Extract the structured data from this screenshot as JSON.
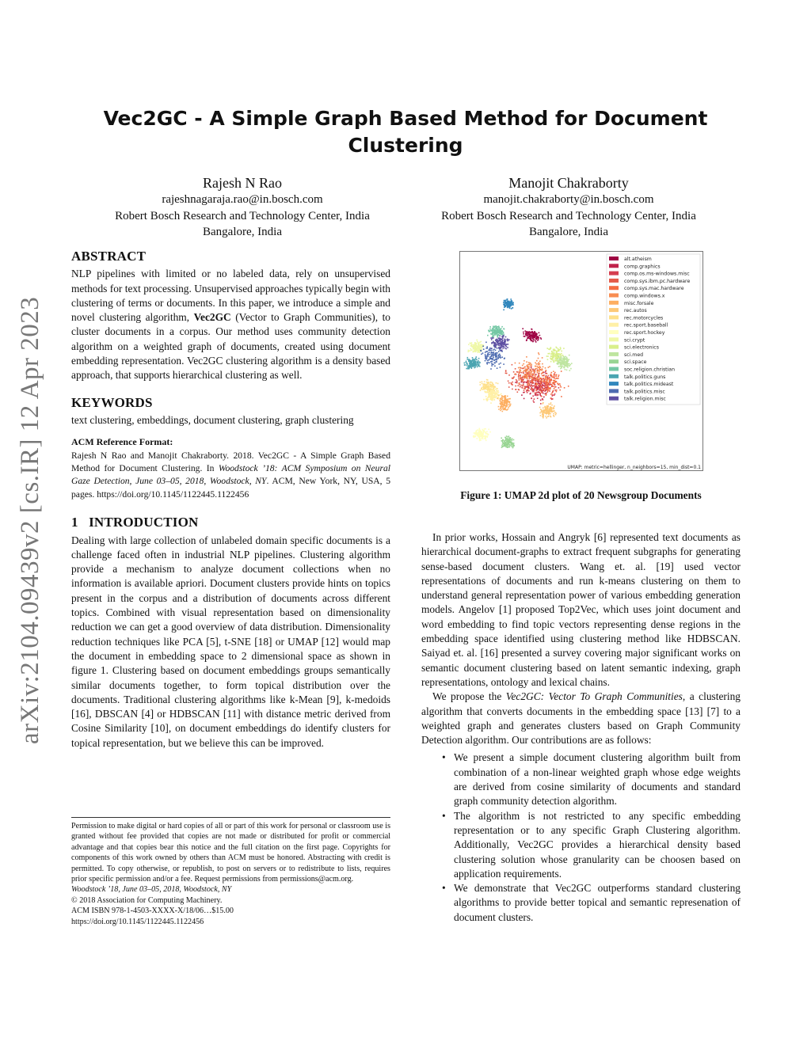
{
  "arxiv_stamp": "arXiv:2104.09439v2  [cs.IR]  12 Apr 2023",
  "title": "Vec2GC - A Simple Graph Based Method for Document Clustering",
  "authors": [
    {
      "name": "Rajesh N Rao",
      "email": "rajeshnagaraja.rao@in.bosch.com",
      "affiliation": "Robert Bosch Research and Technology Center, India",
      "location": "Bangalore, India"
    },
    {
      "name": "Manojit Chakraborty",
      "email": "manojit.chakraborty@in.bosch.com",
      "affiliation": "Robert Bosch Research and Technology Center, India",
      "location": "Bangalore, India"
    }
  ],
  "abstract": {
    "heading": "ABSTRACT",
    "text_before": "NLP pipelines with limited or no labeled data, rely on unsupervised methods for text processing. Unsupervised approaches typically begin with clustering of terms or documents. In this paper, we introduce a simple and novel clustering algorithm, ",
    "bold": "Vec2GC",
    "text_after": " (Vector to Graph Communities), to cluster documents in a corpus. Our method uses community detection algorithm on a weighted graph of documents, created using document embedding representation. Vec2GC clustering algorithm is a density based approach, that supports hierarchical clustering as well."
  },
  "keywords": {
    "heading": "KEYWORDS",
    "text": "text clustering, embeddings, document clustering, graph clustering"
  },
  "acm_ref": {
    "heading": "ACM Reference Format:",
    "text_before": "Rajesh N Rao and Manojit Chakraborty. 2018. Vec2GC - A Simple Graph Based Method for Document Clustering. In ",
    "italic": "Woodstock ’18: ACM Symposium on Neural Gaze Detection, June 03–05, 2018, Woodstock, NY",
    "text_after": ". ACM, New York, NY, USA, 5 pages. https://doi.org/10.1145/1122445.1122456"
  },
  "intro": {
    "heading_num": "1",
    "heading": "INTRODUCTION",
    "text": "Dealing with large collection of unlabeled domain specific documents is a challenge faced often in industrial NLP pipelines. Clustering algorithm provide a mechanism to analyze document collections when no information is available apriori. Document clusters provide hints on topics present in the corpus and a distribution of documents across different topics. Combined with visual representation based on dimensionality reduction we can get a good overview of data distribution. Dimensionality reduction techniques like PCA [5], t-SNE [18] or UMAP [12] would map the document in embedding space to 2 dimensional space as shown in figure 1. Clustering based on document embeddings groups semantically similar documents together, to form topical distribution over the documents. Traditional clustering algorithms like k-Mean [9], k-medoids [16], DBSCAN [4] or HDBSCAN [11] with distance metric derived from Cosine Similarity [10], on document embeddings do identify clusters for topical representation, but we believe this can be improved."
  },
  "footnote": {
    "permission": "Permission to make digital or hard copies of all or part of this work for personal or classroom use is granted without fee provided that copies are not made or distributed for profit or commercial advantage and that copies bear this notice and the full citation on the first page. Copyrights for components of this work owned by others than ACM must be honored. Abstracting with credit is permitted. To copy otherwise, or republish, to post on servers or to redistribute to lists, requires prior specific permission and/or a fee. Request permissions from permissions@acm.org.",
    "venue": "Woodstock ’18, June 03–05, 2018, Woodstock, NY",
    "copyright": "© 2018 Association for Computing Machinery.",
    "isbn": "ACM ISBN 978-1-4503-XXXX-X/18/06…$15.00",
    "doi": "https://doi.org/10.1145/1122445.1122456"
  },
  "figure": {
    "caption": "Figure 1: UMAP 2d plot of 20 Newsgroup Documents",
    "annotation": "UMAP: metric=hellinger, n_neighbors=15, min_dist=0.1",
    "chart_data": {
      "type": "scatter",
      "legend_placement": "top-right",
      "legend": [
        {
          "name": "alt.atheism",
          "color": "#9e0142"
        },
        {
          "name": "comp.graphics",
          "color": "#c0234b"
        },
        {
          "name": "comp.os.ms-windows.misc",
          "color": "#d53e4f"
        },
        {
          "name": "comp.sys.ibm.pc.hardware",
          "color": "#e45a49"
        },
        {
          "name": "comp.sys.mac.hardware",
          "color": "#f46d43"
        },
        {
          "name": "comp.windows.x",
          "color": "#f88d52"
        },
        {
          "name": "misc.forsale",
          "color": "#fdae61"
        },
        {
          "name": "rec.autos",
          "color": "#fdc877"
        },
        {
          "name": "rec.motorcycles",
          "color": "#fee08b"
        },
        {
          "name": "rec.sport.baseball",
          "color": "#fff0a6"
        },
        {
          "name": "rec.sport.hockey",
          "color": "#ffffbf"
        },
        {
          "name": "sci.crypt",
          "color": "#eff8a6"
        },
        {
          "name": "sci.electronics",
          "color": "#d9ef8b"
        },
        {
          "name": "sci.med",
          "color": "#bee5a0"
        },
        {
          "name": "sci.space",
          "color": "#99d594"
        },
        {
          "name": "soc.religion.christian",
          "color": "#74c7a5"
        },
        {
          "name": "talk.politics.guns",
          "color": "#4ba5b1"
        },
        {
          "name": "talk.politics.mideast",
          "color": "#3288bd"
        },
        {
          "name": "talk.politics.misc",
          "color": "#4d6bb0"
        },
        {
          "name": "talk.religion.misc",
          "color": "#5e4fa2"
        }
      ]
    }
  },
  "right": {
    "p1": "In prior works, Hossain and Angryk [6] represented text documents as hierarchical document-graphs to extract frequent subgraphs for generating sense-based document clusters. Wang et. al. [19] used vector representations of documents and run k-means clustering on them to understand general representation power of various embedding generation models. Angelov [1] proposed Top2Vec, which uses joint document and word embedding to find topic vectors representing dense regions in the embedding space identified using clustering method like HDBSCAN. Saiyad et. al. [16] presented a survey covering major significant works on semantic document clustering based on latent semantic indexing, graph representations, ontology and lexical chains.",
    "p2_before": "We propose the ",
    "p2_italic": "Vec2GC: Vector To Graph Communities",
    "p2_after": ", a clustering algorithm that converts documents in the embedding space [13] [7] to a weighted graph and generates clusters based on Graph Community Detection algorithm. Our contributions are as follows:",
    "bullets": [
      "We present a simple document clustering algorithm built from combination of a non-linear weighted graph whose edge weights are derived from cosine similarity of documents and standard graph community detection algorithm.",
      "The algorithm is not restricted to any specific embedding representation or to any specific Graph Clustering algorithm. Additionally, Vec2GC provides a hierarchical density based clustering solution whose granularity can be choosen based on application requirements.",
      "We demonstrate that Vec2GC outperforms standard clustering algorithms to provide better topical and semantic represenation of document clusters."
    ]
  }
}
